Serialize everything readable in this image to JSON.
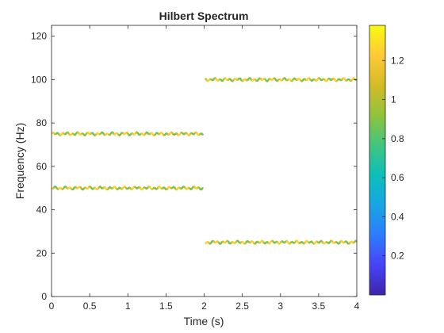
{
  "chart_data": {
    "type": "line",
    "title": "Hilbert Spectrum",
    "xlabel": "Time (s)",
    "ylabel": "Frequency (Hz)",
    "xlim": [
      0,
      4
    ],
    "ylim": [
      0,
      125
    ],
    "xticks": [
      0,
      0.5,
      1,
      1.5,
      2,
      2.5,
      3,
      3.5,
      4
    ],
    "xtick_labels": [
      "0",
      "0.5",
      "1",
      "1.5",
      "2",
      "2.5",
      "3",
      "3.5",
      "4"
    ],
    "yticks": [
      0,
      20,
      40,
      60,
      80,
      100,
      120
    ],
    "ytick_labels": [
      "0",
      "20",
      "40",
      "60",
      "80",
      "100",
      "120"
    ],
    "grid": false,
    "colorbar": {
      "range": [
        0,
        1.38
      ],
      "ticks": [
        0.2,
        0.4,
        0.6,
        0.8,
        1,
        1.2
      ],
      "tick_labels": [
        "0.2",
        "0.4",
        "0.6",
        "0.8",
        "1",
        "1.2"
      ],
      "colormap": "parula",
      "stops": [
        "#3e26a8",
        "#4743f8",
        "#2c7dfd",
        "#17a5e4",
        "#0bbfbb",
        "#41c57f",
        "#8fc43a",
        "#d4bb27",
        "#feca36",
        "#f9fb0f"
      ]
    },
    "series": [
      {
        "segments": [
          {
            "t": [
              0,
              1.98
            ],
            "frequency": 75,
            "amplitude": 1.05
          },
          {
            "t": [
              2.02,
              4.0
            ],
            "frequency": 100,
            "amplitude": 1.05
          }
        ]
      },
      {
        "segments": [
          {
            "t": [
              0,
              1.98
            ],
            "frequency": 50,
            "amplitude": 1.05
          },
          {
            "t": [
              2.02,
              4.0
            ],
            "frequency": 25,
            "amplitude": 1.05
          }
        ]
      }
    ]
  }
}
